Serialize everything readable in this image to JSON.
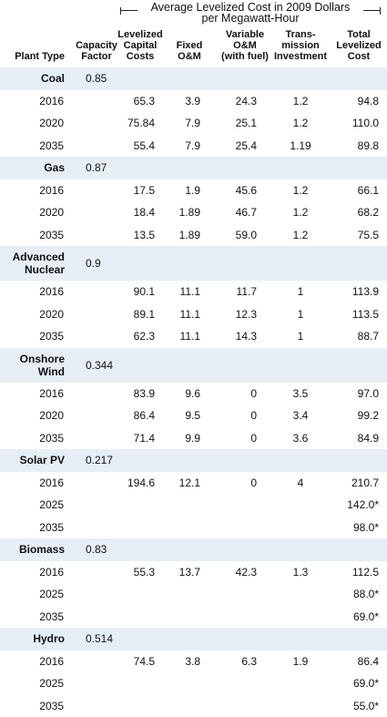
{
  "header": {
    "span_title": "Average Levelized Cost in 2009 Dollars per Megawatt-Hour",
    "columns": {
      "plant_type": "Plant Type",
      "capacity_factor": "Capacity\nFactor",
      "capital": "Levelized\nCapital\nCosts",
      "fixed": "Fixed\nO&M",
      "variable": "Variable\nO&M\n(with fuel)",
      "transmission": "Trans-\nmission\nInvestment",
      "total": "Total\nLevelized\nCost"
    }
  },
  "groups": [
    {
      "name": "Coal",
      "capacity_factor": "0.85",
      "rows": [
        {
          "year": "2016",
          "capital": "65.3",
          "fixed": "3.9",
          "variable": "24.3",
          "transmission": "1.2",
          "total": "94.8"
        },
        {
          "year": "2020",
          "capital": "75.84",
          "fixed": "7.9",
          "variable": "25.1",
          "transmission": "1.2",
          "total": "110.0"
        },
        {
          "year": "2035",
          "capital": "55.4",
          "fixed": "7.9",
          "variable": "25.4",
          "transmission": "1.19",
          "total": "89.8"
        }
      ]
    },
    {
      "name": "Gas",
      "capacity_factor": "0.87",
      "rows": [
        {
          "year": "2016",
          "capital": "17.5",
          "fixed": "1.9",
          "variable": "45.6",
          "transmission": "1.2",
          "total": "66.1"
        },
        {
          "year": "2020",
          "capital": "18.4",
          "fixed": "1.89",
          "variable": "46.7",
          "transmission": "1.2",
          "total": "68.2"
        },
        {
          "year": "2035",
          "capital": "13.5",
          "fixed": "1.89",
          "variable": "59.0",
          "transmission": "1.2",
          "total": "75.5"
        }
      ]
    },
    {
      "name": "Advanced\nNuclear",
      "capacity_factor": "0.9",
      "rows": [
        {
          "year": "2016",
          "capital": "90.1",
          "fixed": "11.1",
          "variable": "11.7",
          "transmission": "1",
          "total": "113.9"
        },
        {
          "year": "2020",
          "capital": "89.1",
          "fixed": "11.1",
          "variable": "12.3",
          "transmission": "1",
          "total": "113.5"
        },
        {
          "year": "2035",
          "capital": "62.3",
          "fixed": "11.1",
          "variable": "14.3",
          "transmission": "1",
          "total": "88.7"
        }
      ]
    },
    {
      "name": "Onshore\nWind",
      "capacity_factor": "0.344",
      "rows": [
        {
          "year": "2016",
          "capital": "83.9",
          "fixed": "9.6",
          "variable": "0",
          "transmission": "3.5",
          "total": "97.0"
        },
        {
          "year": "2020",
          "capital": "86.4",
          "fixed": "9.5",
          "variable": "0",
          "transmission": "3.4",
          "total": "99.2"
        },
        {
          "year": "2035",
          "capital": "71.4",
          "fixed": "9.9",
          "variable": "0",
          "transmission": "3.6",
          "total": "84.9"
        }
      ]
    },
    {
      "name": "Solar PV",
      "capacity_factor": "0.217",
      "rows": [
        {
          "year": "2016",
          "capital": "194.6",
          "fixed": "12.1",
          "variable": "0",
          "transmission": "4",
          "total": "210.7"
        },
        {
          "year": "2025",
          "capital": "",
          "fixed": "",
          "variable": "",
          "transmission": "",
          "total": "142.0*"
        },
        {
          "year": "2035",
          "capital": "",
          "fixed": "",
          "variable": "",
          "transmission": "",
          "total": "98.0*"
        }
      ]
    },
    {
      "name": "Biomass",
      "capacity_factor": "0.83",
      "rows": [
        {
          "year": "2016",
          "capital": "55.3",
          "fixed": "13.7",
          "variable": "42.3",
          "transmission": "1.3",
          "total": "112.5"
        },
        {
          "year": "2025",
          "capital": "",
          "fixed": "",
          "variable": "",
          "transmission": "",
          "total": "88.0*"
        },
        {
          "year": "2035",
          "capital": "",
          "fixed": "",
          "variable": "",
          "transmission": "",
          "total": "69.0*"
        }
      ]
    },
    {
      "name": "Hydro",
      "capacity_factor": "0.514",
      "rows": [
        {
          "year": "2016",
          "capital": "74.5",
          "fixed": "3.8",
          "variable": "6.3",
          "transmission": "1.9",
          "total": "86.4"
        },
        {
          "year": "2025",
          "capital": "",
          "fixed": "",
          "variable": "",
          "transmission": "",
          "total": "69.0*"
        },
        {
          "year": "2035",
          "capital": "",
          "fixed": "",
          "variable": "",
          "transmission": "",
          "total": "55.0*"
        }
      ]
    }
  ]
}
